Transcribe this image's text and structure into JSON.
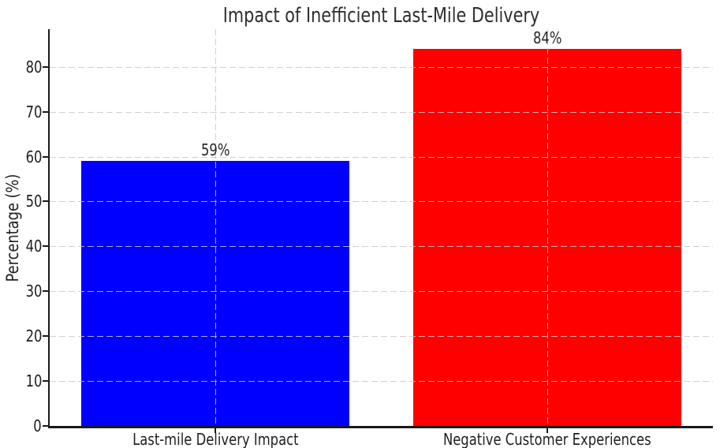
{
  "chart_data": {
    "type": "bar",
    "title": "Impact of Inefficient Last-Mile Delivery",
    "xlabel": "",
    "ylabel": "Percentage (%)",
    "categories": [
      "Last-mile Delivery Impact",
      "Negative Customer Experiences"
    ],
    "values": [
      59,
      84
    ],
    "bar_labels": [
      "59%",
      "84%"
    ],
    "bar_colors": [
      "#0000ff",
      "#ff0000"
    ],
    "yticks": [
      0,
      10,
      20,
      30,
      40,
      50,
      60,
      70,
      80
    ],
    "ylim": [
      0,
      88.4
    ],
    "grid": "dashed, gray, horizontal at each y-tick and vertical at each bar center, drawn over bars",
    "legend_position": "none",
    "colors": {
      "background": "#ffffff",
      "spine": "#1a1a1a",
      "grid": "#c7c7c7",
      "text": "#262626"
    }
  }
}
